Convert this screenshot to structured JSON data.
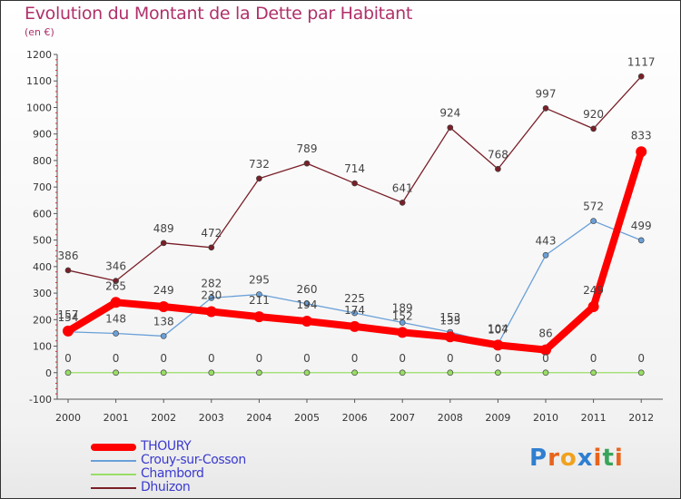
{
  "title": "Evolution du Montant de la Dette par Habitant",
  "subtitle": "(en €)",
  "logo": {
    "text": "Proxiti",
    "letters": [
      "P",
      "r",
      "o",
      "x",
      "i",
      "t",
      "i"
    ],
    "colors": [
      "#2f7fd1",
      "#e8641c",
      "#f0a21e",
      "#2f7fd1",
      "#e8641c",
      "#3aa55a",
      "#e8641c"
    ]
  },
  "chart_data": {
    "type": "line",
    "title": "Evolution du Montant de la Dette par Habitant",
    "subtitle": "(en €)",
    "xlabel": "",
    "ylabel": "",
    "x": [
      "2000",
      "2001",
      "2002",
      "2003",
      "2004",
      "2005",
      "2006",
      "2007",
      "2008",
      "2009",
      "2010",
      "2011",
      "2012"
    ],
    "ylim": [
      -100,
      1200
    ],
    "yticks": [
      "-100",
      "0",
      "100",
      "200",
      "300",
      "400",
      "500",
      "600",
      "700",
      "800",
      "900",
      "1000",
      "1100",
      "1200"
    ],
    "grid": false,
    "legend": "bottom-left",
    "series": [
      {
        "name": "THOURY",
        "color": "#ff0000",
        "values": [
          157,
          265,
          249,
          230,
          211,
          194,
          174,
          152,
          135,
          104,
          86,
          249,
          833
        ]
      },
      {
        "name": "Crouy-sur-Cosson",
        "color": "#6aa0d8",
        "values": [
          154,
          148,
          138,
          282,
          295,
          260,
          225,
          189,
          153,
          107,
          443,
          572,
          499
        ]
      },
      {
        "name": "Chambord",
        "color": "#99dd66",
        "values": [
          0,
          0,
          0,
          0,
          0,
          0,
          0,
          0,
          0,
          0,
          0,
          0,
          0
        ]
      },
      {
        "name": "Dhuizon",
        "color": "#7a1f28",
        "values": [
          386,
          346,
          489,
          472,
          732,
          789,
          714,
          641,
          924,
          768,
          997,
          920,
          1117
        ]
      }
    ]
  }
}
